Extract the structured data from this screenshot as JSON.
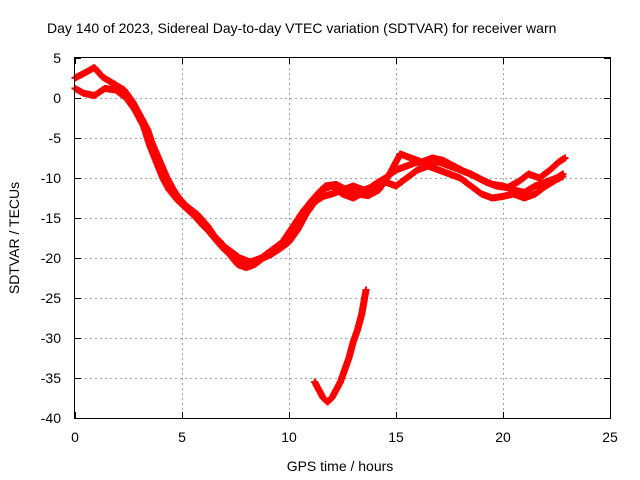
{
  "chart_data": {
    "type": "scatter",
    "title": "Day 140 of 2023, Sidereal Day-to-day VTEC variation (SDTVAR) for receiver warn",
    "xlabel": "GPS time / hours",
    "ylabel": "SDTVAR / TECUs",
    "xlim": [
      0,
      25
    ],
    "ylim": [
      -40,
      5
    ],
    "xticks": [
      0,
      5,
      10,
      15,
      20,
      25
    ],
    "yticks": [
      5,
      0,
      -5,
      -10,
      -15,
      -20,
      -25,
      -30,
      -35,
      -40
    ],
    "xtick_labels": [
      "0",
      "5",
      "10",
      "15",
      "20",
      "25"
    ],
    "ytick_labels": [
      "5",
      "0",
      "-5",
      "-10",
      "-15",
      "-20",
      "-25",
      "-30",
      "-35",
      "-40"
    ],
    "grid": true,
    "marker": "+",
    "series": [
      {
        "name": "track A",
        "color": "#ff0000",
        "points": [
          [
            0.0,
            2.5
          ],
          [
            0.5,
            3.2
          ],
          [
            0.9,
            3.8
          ],
          [
            1.3,
            2.6
          ],
          [
            1.8,
            1.8
          ],
          [
            2.3,
            1.0
          ],
          [
            2.7,
            -0.5
          ],
          [
            3.0,
            -2.0
          ],
          [
            3.4,
            -4.0
          ],
          [
            3.7,
            -6.5
          ],
          [
            4.0,
            -8.5
          ],
          [
            4.3,
            -10.0
          ],
          [
            4.6,
            -11.5
          ],
          [
            5.0,
            -13.0
          ],
          [
            5.4,
            -14.0
          ],
          [
            5.8,
            -15.0
          ],
          [
            6.2,
            -16.5
          ],
          [
            6.6,
            -17.8
          ],
          [
            7.0,
            -19.0
          ],
          [
            7.4,
            -19.8
          ],
          [
            7.8,
            -20.6
          ],
          [
            8.2,
            -21.0
          ],
          [
            8.6,
            -20.2
          ],
          [
            9.0,
            -19.5
          ],
          [
            9.5,
            -18.5
          ],
          [
            10.0,
            -17.5
          ],
          [
            10.5,
            -15.0
          ],
          [
            11.0,
            -13.0
          ],
          [
            11.5,
            -11.5
          ],
          [
            12.0,
            -11.0
          ],
          [
            12.5,
            -12.0
          ],
          [
            13.0,
            -12.5
          ],
          [
            13.5,
            -11.8
          ],
          [
            14.0,
            -10.8
          ],
          [
            14.5,
            -10.0
          ],
          [
            15.0,
            -9.0
          ],
          [
            15.5,
            -8.5
          ],
          [
            16.0,
            -8.0
          ],
          [
            16.5,
            -8.2
          ],
          [
            17.0,
            -8.0
          ],
          [
            17.5,
            -8.5
          ],
          [
            18.0,
            -9.0
          ],
          [
            18.5,
            -9.5
          ],
          [
            19.0,
            -10.2
          ],
          [
            19.5,
            -10.8
          ],
          [
            20.0,
            -11.0
          ],
          [
            20.5,
            -11.5
          ],
          [
            21.0,
            -11.8
          ],
          [
            21.5,
            -11.0
          ],
          [
            22.0,
            -10.5
          ],
          [
            22.5,
            -10.0
          ],
          [
            22.8,
            -9.5
          ]
        ]
      },
      {
        "name": "track B",
        "color": "#ff0000",
        "points": [
          [
            0.0,
            1.2
          ],
          [
            0.4,
            0.6
          ],
          [
            0.9,
            0.3
          ],
          [
            1.4,
            1.2
          ],
          [
            1.9,
            1.0
          ],
          [
            2.4,
            0.0
          ],
          [
            2.8,
            -1.5
          ],
          [
            3.2,
            -3.5
          ],
          [
            3.5,
            -6.0
          ],
          [
            3.8,
            -8.0
          ],
          [
            4.1,
            -10.0
          ],
          [
            4.4,
            -11.5
          ],
          [
            4.8,
            -12.8
          ],
          [
            5.2,
            -13.8
          ],
          [
            5.6,
            -14.8
          ],
          [
            6.0,
            -16.0
          ],
          [
            6.4,
            -17.0
          ],
          [
            6.8,
            -18.0
          ],
          [
            7.2,
            -19.5
          ],
          [
            7.6,
            -20.8
          ],
          [
            8.0,
            -21.2
          ],
          [
            8.4,
            -20.8
          ],
          [
            8.8,
            -20.0
          ],
          [
            9.2,
            -19.5
          ],
          [
            9.6,
            -18.8
          ],
          [
            10.0,
            -18.0
          ],
          [
            10.4,
            -16.5
          ],
          [
            10.8,
            -14.5
          ],
          [
            11.2,
            -13.0
          ],
          [
            11.6,
            -12.3
          ],
          [
            12.0,
            -12.0
          ],
          [
            12.5,
            -11.5
          ],
          [
            13.0,
            -11.0
          ],
          [
            13.5,
            -11.5
          ],
          [
            14.0,
            -11.0
          ],
          [
            14.5,
            -10.5
          ],
          [
            15.0,
            -11.0
          ],
          [
            15.5,
            -10.0
          ],
          [
            16.0,
            -9.0
          ],
          [
            16.5,
            -8.5
          ],
          [
            17.0,
            -9.0
          ],
          [
            17.5,
            -9.5
          ],
          [
            18.0,
            -10.0
          ],
          [
            18.5,
            -11.0
          ],
          [
            19.0,
            -12.0
          ],
          [
            19.5,
            -12.5
          ],
          [
            20.0,
            -12.3
          ],
          [
            20.5,
            -12.0
          ],
          [
            21.0,
            -12.5
          ],
          [
            21.5,
            -12.0
          ],
          [
            22.0,
            -11.0
          ],
          [
            22.5,
            -10.2
          ],
          [
            22.8,
            -9.8
          ]
        ]
      },
      {
        "name": "track C",
        "color": "#ff0000",
        "points": [
          [
            2.5,
            -0.3
          ],
          [
            2.8,
            -1.2
          ],
          [
            3.2,
            -3.0
          ],
          [
            3.5,
            -5.0
          ],
          [
            3.9,
            -7.5
          ],
          [
            4.3,
            -10.0
          ],
          [
            4.7,
            -12.0
          ],
          [
            5.2,
            -13.5
          ],
          [
            5.7,
            -14.5
          ],
          [
            6.2,
            -16.0
          ],
          [
            6.7,
            -18.0
          ],
          [
            7.2,
            -19.0
          ],
          [
            7.7,
            -20.0
          ],
          [
            8.2,
            -20.5
          ],
          [
            8.7,
            -20.0
          ],
          [
            9.2,
            -19.0
          ],
          [
            9.7,
            -18.0
          ],
          [
            10.2,
            -16.0
          ],
          [
            10.7,
            -14.0
          ],
          [
            11.2,
            -12.5
          ],
          [
            11.7,
            -11.0
          ],
          [
            12.2,
            -10.8
          ],
          [
            12.7,
            -11.5
          ],
          [
            13.2,
            -12.0
          ],
          [
            13.7,
            -12.2
          ],
          [
            14.2,
            -11.5
          ],
          [
            14.7,
            -9.5
          ],
          [
            15.2,
            -7.0
          ],
          [
            15.7,
            -7.5
          ],
          [
            16.2,
            -8.0
          ],
          [
            16.7,
            -7.5
          ],
          [
            17.2,
            -7.8
          ],
          [
            17.7,
            -8.5
          ],
          [
            18.2,
            -9.2
          ],
          [
            18.7,
            -9.8
          ],
          [
            19.2,
            -10.5
          ],
          [
            19.7,
            -11.0
          ],
          [
            20.2,
            -11.2
          ],
          [
            20.7,
            -10.5
          ],
          [
            21.2,
            -9.5
          ],
          [
            21.7,
            -10.0
          ],
          [
            22.2,
            -9.0
          ],
          [
            22.6,
            -8.0
          ],
          [
            22.9,
            -7.5
          ]
        ]
      },
      {
        "name": "short track",
        "color": "#ff0000",
        "points": [
          [
            11.2,
            -35.5
          ],
          [
            11.4,
            -36.5
          ],
          [
            11.6,
            -37.5
          ],
          [
            11.8,
            -38.0
          ],
          [
            12.0,
            -37.5
          ],
          [
            12.2,
            -36.5
          ],
          [
            12.4,
            -35.5
          ],
          [
            12.6,
            -34.0
          ],
          [
            12.8,
            -32.5
          ],
          [
            13.0,
            -30.5
          ],
          [
            13.2,
            -29.0
          ],
          [
            13.4,
            -27.0
          ],
          [
            13.6,
            -24.0
          ]
        ]
      }
    ]
  }
}
